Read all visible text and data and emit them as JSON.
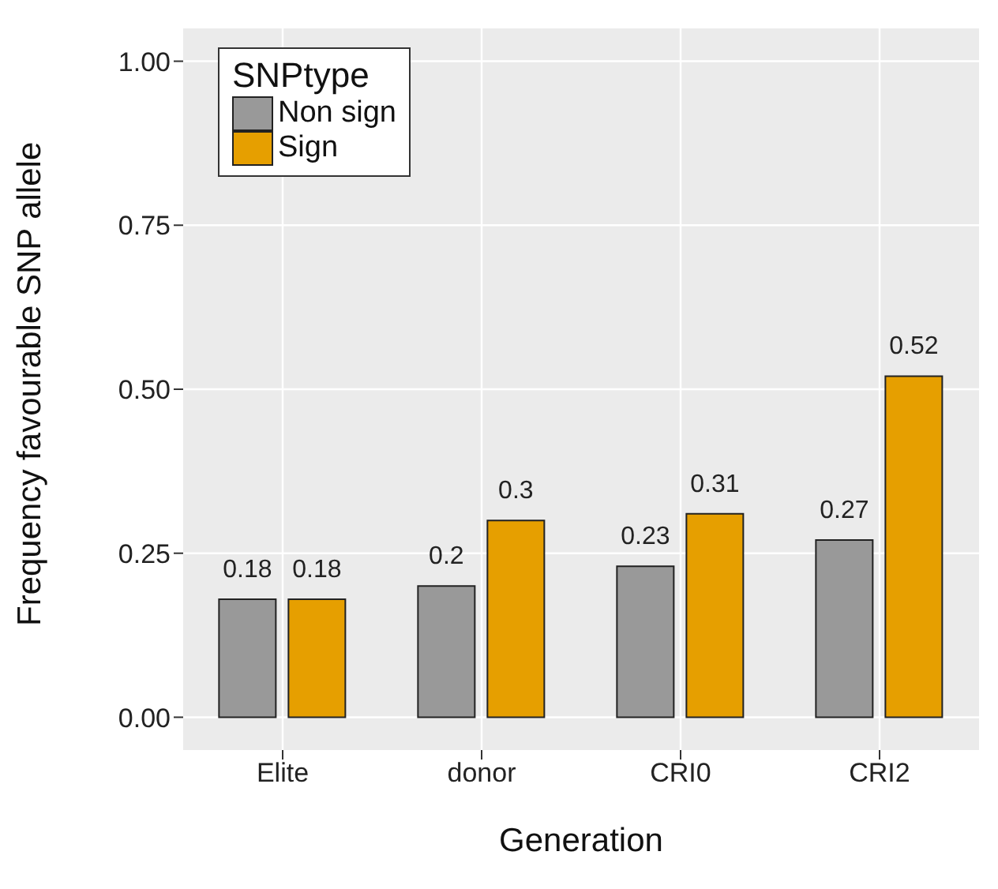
{
  "chart_data": {
    "type": "bar",
    "xlabel": "Generation",
    "ylabel": "Frequency favourable SNP allele",
    "legend_title": "SNPtype",
    "categories": [
      "Elite",
      "donor",
      "CRI0",
      "CRI2"
    ],
    "series": [
      {
        "name": "Non sign",
        "color": "#999999",
        "values": [
          0.18,
          0.2,
          0.23,
          0.27
        ]
      },
      {
        "name": "Sign",
        "color": "#e69f00",
        "values": [
          0.18,
          0.3,
          0.31,
          0.52
        ]
      }
    ],
    "ylim": [
      -0.05,
      1.05
    ],
    "yticks": [
      {
        "value": 0,
        "label": "0.00"
      },
      {
        "value": 0.25,
        "label": "0.25"
      },
      {
        "value": 0.5,
        "label": "0.50"
      },
      {
        "value": 0.75,
        "label": "0.75"
      },
      {
        "value": 1,
        "label": "1.00"
      }
    ],
    "grid": true,
    "legend": "top left",
    "data_labels": true
  }
}
